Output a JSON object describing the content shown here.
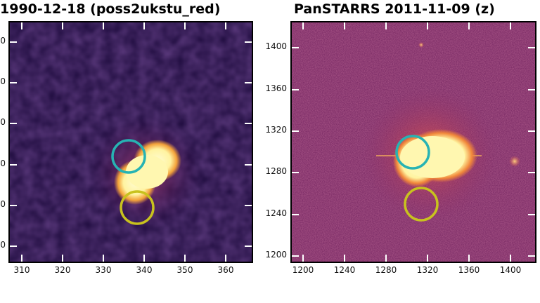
{
  "panels": [
    {
      "title": "1990-12-18 (poss2ukstu_red)",
      "x_ticks": [
        "310",
        "320",
        "330",
        "340",
        "350",
        "360"
      ],
      "y_ticks_partial": [
        "00",
        "00",
        "00",
        "00",
        "00",
        "00"
      ]
    },
    {
      "title": "PanSTARRS 2011-11-09 (z)",
      "x_ticks": [
        "1200",
        "1240",
        "1280",
        "1320",
        "1360",
        "1400"
      ],
      "y_ticks": [
        "1400",
        "1360",
        "1320",
        "1280",
        "1240",
        "1200"
      ]
    }
  ],
  "colors": {
    "left_background": "#2a0c4a",
    "right_background": "#8a2b63",
    "blob_core": "#fff6a0",
    "cyan_circle": "#27b3b3",
    "yellow_circle": "#c8c21e"
  }
}
